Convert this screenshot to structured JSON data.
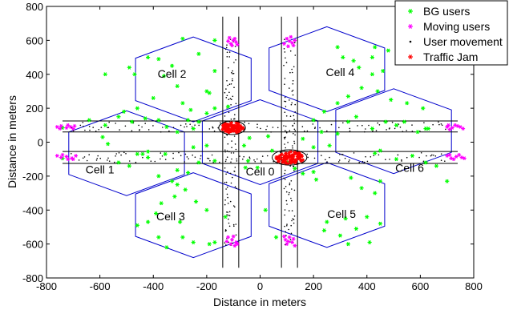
{
  "chart_data": {
    "type": "scatter",
    "title": "",
    "xlabel": "Distance in meters",
    "ylabel": "Distance in meters",
    "xlim": [
      -800,
      800
    ],
    "ylim": [
      -800,
      800
    ],
    "x_ticks": [
      -800,
      -600,
      -400,
      -200,
      0,
      200,
      400,
      600,
      800
    ],
    "y_ticks": [
      -800,
      -600,
      -400,
      -200,
      0,
      200,
      400,
      600,
      800
    ],
    "grid": false,
    "legend_position": "top-right",
    "legend": [
      {
        "label": "BG users",
        "marker": "*",
        "color": "#00ff00"
      },
      {
        "label": "Moving users",
        "marker": "*",
        "color": "#ff00ff"
      },
      {
        "label": "User movement",
        "marker": ".",
        "color": "#000000"
      },
      {
        "label": "Traffic Jam",
        "marker": "*",
        "color": "#ff0000"
      }
    ],
    "cells": [
      {
        "label": "Cell 0",
        "center": [
          0,
          0
        ],
        "label_pos": [
          0,
          -195
        ]
      },
      {
        "label": "Cell 1",
        "center": [
          -500,
          -65
        ],
        "label_pos": [
          -600,
          -185
        ]
      },
      {
        "label": "Cell 2",
        "center": [
          -250,
          370
        ],
        "label_pos": [
          -330,
          380
        ]
      },
      {
        "label": "Cell 3",
        "center": [
          -250,
          -430
        ],
        "label_pos": [
          -335,
          -460
        ]
      },
      {
        "label": "Cell 4",
        "center": [
          250,
          430
        ],
        "label_pos": [
          300,
          390
        ]
      },
      {
        "label": "Cell 5",
        "center": [
          250,
          -370
        ],
        "label_pos": [
          305,
          -445
        ]
      },
      {
        "label": "Cell 6",
        "center": [
          500,
          65
        ],
        "label_pos": [
          560,
          -175
        ]
      }
    ],
    "cell_hexagon_radius": 250,
    "roads": {
      "horizontal_lines_y": [
        125,
        60,
        -55,
        -125
      ],
      "vertical_lines_x": [
        -140,
        -80,
        80,
        140
      ]
    },
    "traffic_jams": [
      {
        "center": [
          -105,
          85
        ],
        "rx": 50,
        "ry": 40
      },
      {
        "center": [
          110,
          -90
        ],
        "rx": 65,
        "ry": 45
      }
    ],
    "series": [
      {
        "name": "BG users",
        "color": "#00ff00",
        "points": [
          [
            -740,
            85
          ],
          [
            -590,
            30
          ],
          [
            -570,
            -10
          ],
          [
            -460,
            -70
          ],
          [
            -420,
            -55
          ],
          [
            -355,
            -70
          ],
          [
            -250,
            -30
          ],
          [
            -200,
            -20
          ],
          [
            -530,
            -120
          ],
          [
            -490,
            -140
          ],
          [
            -440,
            -70
          ],
          [
            -310,
            -165
          ],
          [
            -270,
            -180
          ],
          [
            -380,
            -200
          ],
          [
            -330,
            -230
          ],
          [
            -310,
            -250
          ],
          [
            -230,
            -120
          ],
          [
            -170,
            -110
          ],
          [
            -45,
            -110
          ],
          [
            -60,
            -20
          ],
          [
            -40,
            25
          ],
          [
            30,
            35
          ],
          [
            45,
            -50
          ],
          [
            -55,
            -150
          ],
          [
            -10,
            -150
          ],
          [
            100,
            -120
          ],
          [
            130,
            -155
          ],
          [
            160,
            -185
          ],
          [
            200,
            -175
          ],
          [
            210,
            -220
          ],
          [
            -370,
            -360
          ],
          [
            -320,
            -320
          ],
          [
            -280,
            -280
          ],
          [
            -240,
            -350
          ],
          [
            -200,
            -400
          ],
          [
            -130,
            -440
          ],
          [
            -390,
            -420
          ],
          [
            -420,
            -470
          ],
          [
            -460,
            -490
          ],
          [
            -380,
            -560
          ],
          [
            -350,
            -620
          ],
          [
            -250,
            -590
          ],
          [
            -190,
            -600
          ],
          [
            -290,
            -560
          ],
          [
            -170,
            -590
          ],
          [
            -300,
            -470
          ],
          [
            60,
            -560
          ],
          [
            20,
            -400
          ],
          [
            250,
            -470
          ],
          [
            240,
            -520
          ],
          [
            300,
            -550
          ],
          [
            330,
            -600
          ],
          [
            410,
            -590
          ],
          [
            360,
            -510
          ],
          [
            320,
            -450
          ],
          [
            400,
            -440
          ],
          [
            450,
            -480
          ],
          [
            430,
            -300
          ],
          [
            380,
            -270
          ],
          [
            340,
            -210
          ],
          [
            450,
            -230
          ],
          [
            620,
            -120
          ],
          [
            700,
            -230
          ],
          [
            660,
            -140
          ],
          [
            570,
            -80
          ],
          [
            510,
            -100
          ],
          [
            450,
            -50
          ],
          [
            430,
            -65
          ],
          [
            590,
            60
          ],
          [
            620,
            80
          ],
          [
            540,
            120
          ],
          [
            360,
            150
          ],
          [
            330,
            120
          ],
          [
            420,
            80
          ],
          [
            470,
            120
          ],
          [
            510,
            100
          ],
          [
            290,
            50
          ],
          [
            230,
            60
          ],
          [
            260,
            -20
          ],
          [
            200,
            -30
          ],
          [
            160,
            20
          ],
          [
            200,
            130
          ],
          [
            240,
            180
          ],
          [
            290,
            230
          ],
          [
            330,
            270
          ],
          [
            380,
            320
          ],
          [
            420,
            400
          ],
          [
            460,
            420
          ],
          [
            370,
            440
          ],
          [
            350,
            480
          ],
          [
            310,
            500
          ],
          [
            290,
            560
          ],
          [
            430,
            560
          ],
          [
            480,
            540
          ],
          [
            420,
            500
          ],
          [
            440,
            300
          ],
          [
            490,
            250
          ],
          [
            550,
            230
          ],
          [
            610,
            200
          ],
          [
            630,
            80
          ],
          [
            -490,
            440
          ],
          [
            -580,
            400
          ],
          [
            -470,
            400
          ],
          [
            -420,
            500
          ],
          [
            -380,
            490
          ],
          [
            -330,
            450
          ],
          [
            -360,
            390
          ],
          [
            -310,
            330
          ],
          [
            -290,
            230
          ],
          [
            -260,
            190
          ],
          [
            -230,
            120
          ],
          [
            -200,
            170
          ],
          [
            -170,
            200
          ],
          [
            -120,
            210
          ],
          [
            -170,
            420
          ],
          [
            -190,
            290
          ],
          [
            -170,
            600
          ],
          [
            -290,
            610
          ],
          [
            -230,
            520
          ],
          [
            -200,
            300
          ],
          [
            -400,
            260
          ],
          [
            -460,
            200
          ],
          [
            -510,
            180
          ],
          [
            -380,
            130
          ],
          [
            -350,
            90
          ],
          [
            -310,
            60
          ],
          [
            -250,
            80
          ],
          [
            -270,
            130
          ],
          [
            -430,
            140
          ],
          [
            -480,
            120
          ],
          [
            -530,
            150
          ],
          [
            -580,
            100
          ],
          [
            -640,
            130
          ],
          [
            -420,
            -90
          ],
          [
            -740,
            -95
          ]
        ]
      },
      {
        "name": "Moving users",
        "color": "#ff00ff",
        "points": [
          [
            -760,
            90
          ],
          [
            -745,
            95
          ],
          [
            -725,
            85
          ],
          [
            -710,
            90
          ],
          [
            -695,
            95
          ],
          [
            -750,
            80
          ],
          [
            -720,
            100
          ],
          [
            -700,
            80
          ],
          [
            -760,
            -80
          ],
          [
            -745,
            -90
          ],
          [
            -725,
            -85
          ],
          [
            -705,
            -95
          ],
          [
            -690,
            -80
          ],
          [
            -720,
            -100
          ],
          [
            -740,
            -75
          ],
          [
            -700,
            -100
          ],
          [
            -115,
            615
          ],
          [
            -100,
            600
          ],
          [
            -90,
            590
          ],
          [
            -110,
            580
          ],
          [
            -120,
            595
          ],
          [
            -95,
            610
          ],
          [
            -85,
            575
          ],
          [
            -105,
            570
          ],
          [
            100,
            610
          ],
          [
            110,
            595
          ],
          [
            120,
            585
          ],
          [
            90,
            580
          ],
          [
            130,
            600
          ],
          [
            105,
            565
          ],
          [
            125,
            570
          ],
          [
            115,
            620
          ],
          [
            -120,
            -560
          ],
          [
            -105,
            -575
          ],
          [
            -90,
            -590
          ],
          [
            -110,
            -600
          ],
          [
            -95,
            -610
          ],
          [
            -125,
            -585
          ],
          [
            -100,
            -555
          ],
          [
            -85,
            -600
          ],
          [
            110,
            -560
          ],
          [
            95,
            -575
          ],
          [
            120,
            -590
          ],
          [
            100,
            -600
          ],
          [
            130,
            -610
          ],
          [
            105,
            -585
          ],
          [
            90,
            -555
          ],
          [
            125,
            -570
          ],
          [
            700,
            90
          ],
          [
            720,
            85
          ],
          [
            740,
            95
          ],
          [
            760,
            80
          ],
          [
            710,
            75
          ],
          [
            730,
            100
          ],
          [
            750,
            90
          ],
          [
            705,
            100
          ],
          [
            700,
            -80
          ],
          [
            715,
            -95
          ],
          [
            735,
            -85
          ],
          [
            755,
            -90
          ],
          [
            725,
            -100
          ],
          [
            745,
            -75
          ],
          [
            765,
            -95
          ],
          [
            710,
            -75
          ]
        ]
      },
      {
        "name": "User movement",
        "color": "#000000",
        "points": "generated along road lanes between x = -740..740 at y ≈ ±90, and along y = -620..620 at x ≈ -120 and x ≈ +110"
      },
      {
        "name": "Traffic Jam",
        "color": "#ff0000",
        "points": "clustered inside the two ellipses listed in traffic_jams"
      }
    ]
  }
}
